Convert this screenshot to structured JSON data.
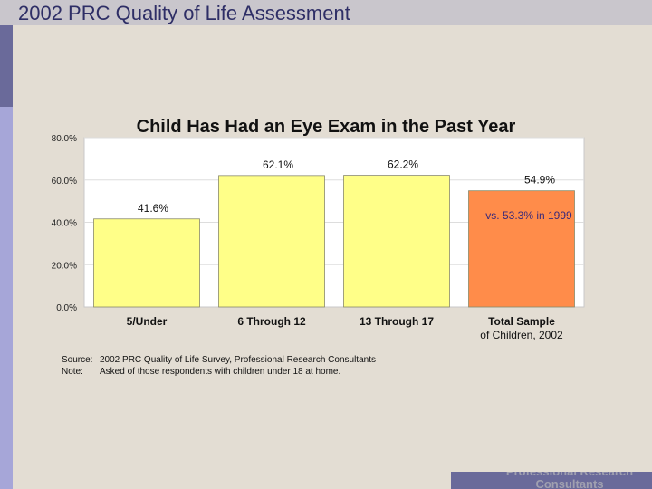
{
  "header": {
    "title": "2002 PRC Quality of Life Assessment"
  },
  "footer": {
    "brand": "Professional Research Consultants"
  },
  "chart_data": {
    "type": "bar",
    "title": "Child Has Had an Eye Exam in the Past Year",
    "categories": [
      "5/Under",
      "6 Through 12",
      "13 Through 17",
      "Total Sample of Children, 2002"
    ],
    "values": [
      41.6,
      62.1,
      62.2,
      54.9
    ],
    "value_labels": [
      "41.6%",
      "62.1%",
      "62.2%",
      "54.9%"
    ],
    "ylim": [
      0,
      80
    ],
    "yticks": [
      0,
      20,
      40,
      60,
      80
    ],
    "ytick_labels": [
      "0.0%",
      "20.0%",
      "40.0%",
      "60.0%",
      "80.0%"
    ],
    "xlabel": "",
    "ylabel": "",
    "grid": true,
    "colors": [
      "#ffff88",
      "#ffff88",
      "#ffff88",
      "#ff8c4a"
    ],
    "annotation": "vs. 53.3% in 1999"
  },
  "notes": {
    "source_label": "Source:",
    "source_text": "2002 PRC Quality of Life Survey, Professional Research Consultants",
    "note_label": "Note:",
    "note_text": "Asked of those respondents with children under 18 at home."
  }
}
